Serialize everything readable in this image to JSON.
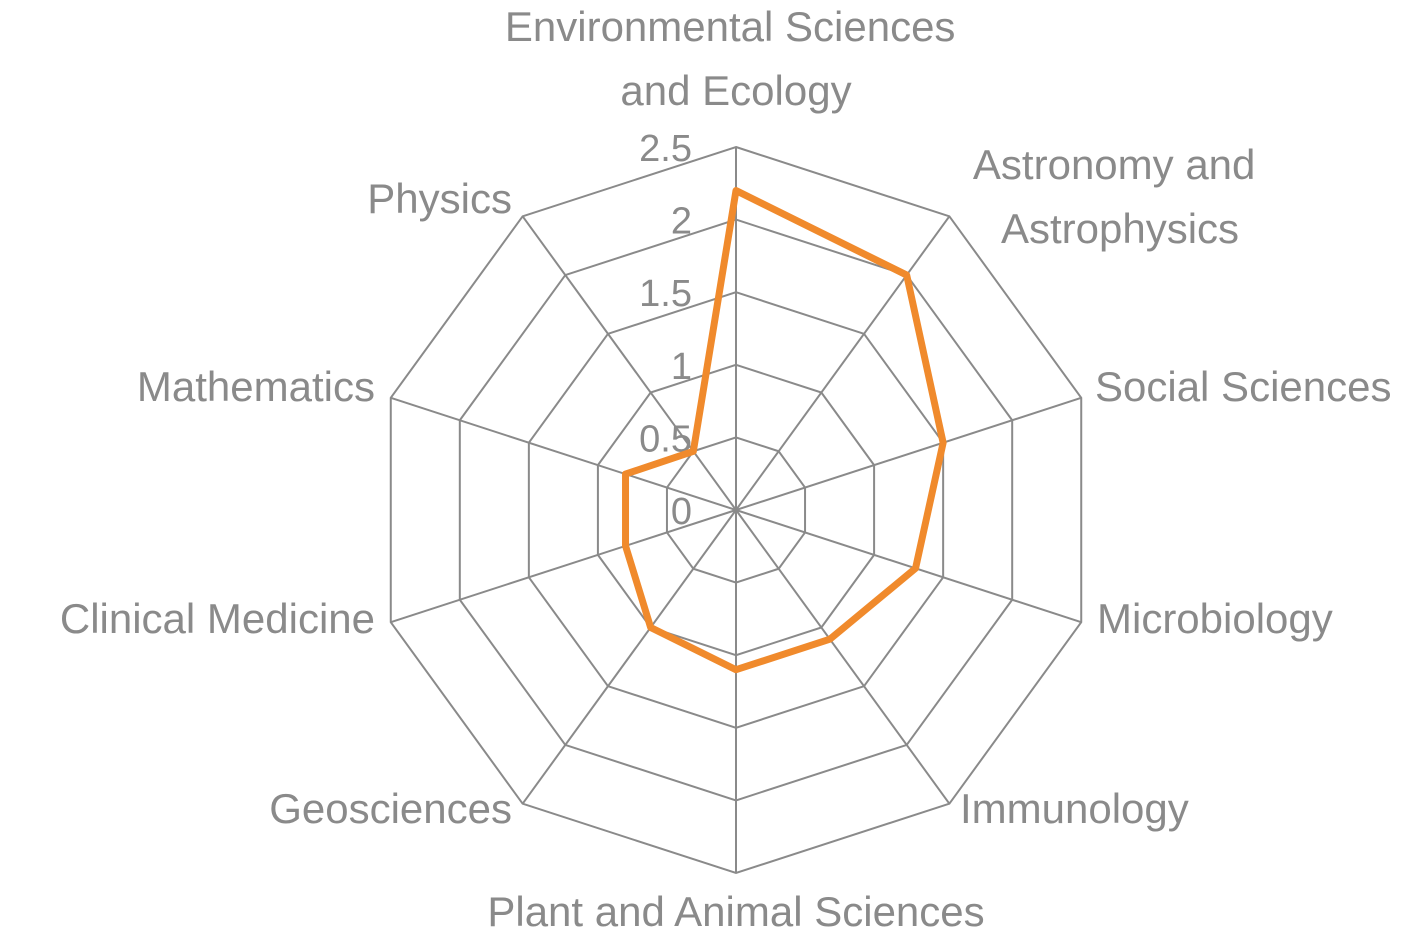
{
  "chart_data": {
    "type": "radar",
    "categories": [
      "Environmental Sciences and Ecology",
      "Astronomy and Astrophysics",
      "Social Sciences",
      "Microbiology",
      "Immunology",
      "Plant and Animal Sciences",
      "Geosciences",
      "Clinical Medicine",
      "Mathematics",
      "Physics"
    ],
    "values": [
      2.2,
      2.0,
      1.5,
      1.3,
      1.1,
      1.1,
      1.0,
      0.8,
      0.8,
      0.5
    ],
    "color": "#f08a2c",
    "rlim": [
      0,
      2.5
    ],
    "rticks": [
      0,
      0.5,
      1,
      1.5,
      2,
      2.5
    ],
    "grid": true
  }
}
